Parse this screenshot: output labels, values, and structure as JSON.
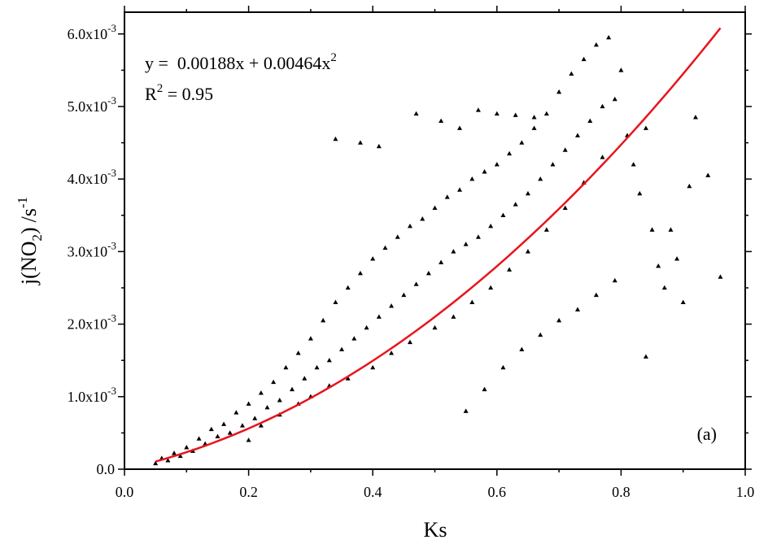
{
  "chart_data": {
    "type": "scatter",
    "title": "",
    "xlabel": "Ks",
    "ylabel_parts": {
      "main": "j(NO",
      "sub": "2",
      "after": ")",
      "unit": "/s",
      "sup": "-1"
    },
    "xlim": [
      0.0,
      1.0
    ],
    "ylim": [
      0.0,
      0.0063
    ],
    "x_ticks": [
      0.0,
      0.2,
      0.4,
      0.6,
      0.8,
      1.0
    ],
    "x_tick_labels": [
      "0.0",
      "0.2",
      "0.4",
      "0.6",
      "0.8",
      "1.0"
    ],
    "y_ticks": [
      0.0,
      0.001,
      0.002,
      0.003,
      0.004,
      0.005,
      0.006
    ],
    "y_tick_labels": [
      {
        "mant": "0.0",
        "exp": ""
      },
      {
        "mant": "1.0x10",
        "exp": "-3"
      },
      {
        "mant": "2.0x10",
        "exp": "-3"
      },
      {
        "mant": "3.0x10",
        "exp": "-3"
      },
      {
        "mant": "4.0x10",
        "exp": "-3"
      },
      {
        "mant": "5.0x10",
        "exp": "-3"
      },
      {
        "mant": "6.0x10",
        "exp": "-3"
      }
    ],
    "grid": false,
    "panel_label": "(a)",
    "equation": {
      "prefix": "y =  0.00188x + 0.00464x",
      "sup": "2"
    },
    "r2": {
      "r": "R",
      "sup": "2",
      "value": " = 0.95"
    },
    "fit": {
      "a": 0.00188,
      "b": 0.00464,
      "x_range": [
        0.05,
        0.96
      ],
      "color": "#e8141c"
    },
    "marker_color": "#000000",
    "series": [
      {
        "points": [
          [
            0.05,
            8e-05
          ],
          [
            0.06,
            0.00015
          ],
          [
            0.07,
            0.00012
          ],
          [
            0.08,
            0.00022
          ],
          [
            0.09,
            0.00018
          ],
          [
            0.1,
            0.0003
          ],
          [
            0.11,
            0.00025
          ],
          [
            0.12,
            0.00042
          ],
          [
            0.13,
            0.00035
          ],
          [
            0.14,
            0.00055
          ],
          [
            0.15,
            0.00045
          ],
          [
            0.16,
            0.00062
          ],
          [
            0.17,
            0.0005
          ],
          [
            0.18,
            0.00078
          ],
          [
            0.19,
            0.0006
          ],
          [
            0.2,
            0.0009
          ],
          [
            0.21,
            0.0007
          ],
          [
            0.22,
            0.00105
          ],
          [
            0.23,
            0.00085
          ],
          [
            0.24,
            0.0012
          ],
          [
            0.25,
            0.00095
          ],
          [
            0.26,
            0.0014
          ],
          [
            0.27,
            0.0011
          ],
          [
            0.28,
            0.0016
          ],
          [
            0.29,
            0.00125
          ],
          [
            0.3,
            0.0018
          ],
          [
            0.31,
            0.0014
          ],
          [
            0.32,
            0.00205
          ],
          [
            0.33,
            0.0015
          ],
          [
            0.34,
            0.0023
          ],
          [
            0.35,
            0.00165
          ],
          [
            0.36,
            0.0025
          ],
          [
            0.37,
            0.0018
          ],
          [
            0.38,
            0.0027
          ],
          [
            0.39,
            0.00195
          ],
          [
            0.4,
            0.0029
          ],
          [
            0.41,
            0.0021
          ],
          [
            0.42,
            0.00305
          ],
          [
            0.43,
            0.00225
          ],
          [
            0.44,
            0.0032
          ],
          [
            0.45,
            0.0024
          ],
          [
            0.46,
            0.00335
          ],
          [
            0.47,
            0.00255
          ],
          [
            0.48,
            0.00345
          ],
          [
            0.49,
            0.0027
          ],
          [
            0.5,
            0.0036
          ],
          [
            0.51,
            0.00285
          ],
          [
            0.52,
            0.00375
          ],
          [
            0.53,
            0.003
          ],
          [
            0.54,
            0.00385
          ],
          [
            0.55,
            0.0031
          ],
          [
            0.56,
            0.004
          ],
          [
            0.57,
            0.0032
          ],
          [
            0.58,
            0.0041
          ],
          [
            0.59,
            0.00335
          ],
          [
            0.6,
            0.0042
          ],
          [
            0.61,
            0.0035
          ],
          [
            0.62,
            0.00435
          ],
          [
            0.63,
            0.00365
          ],
          [
            0.64,
            0.0045
          ],
          [
            0.65,
            0.0038
          ],
          [
            0.66,
            0.0047
          ],
          [
            0.67,
            0.004
          ],
          [
            0.68,
            0.0049
          ],
          [
            0.69,
            0.0042
          ],
          [
            0.7,
            0.0052
          ],
          [
            0.71,
            0.0044
          ],
          [
            0.72,
            0.00545
          ],
          [
            0.73,
            0.0046
          ],
          [
            0.74,
            0.00565
          ],
          [
            0.75,
            0.0048
          ],
          [
            0.76,
            0.00585
          ],
          [
            0.77,
            0.005
          ],
          [
            0.78,
            0.00595
          ],
          [
            0.79,
            0.0051
          ],
          [
            0.8,
            0.0055
          ],
          [
            0.81,
            0.0046
          ],
          [
            0.82,
            0.0042
          ],
          [
            0.83,
            0.0038
          ],
          [
            0.84,
            0.0047
          ],
          [
            0.85,
            0.0033
          ],
          [
            0.86,
            0.0028
          ],
          [
            0.87,
            0.0025
          ],
          [
            0.88,
            0.0033
          ],
          [
            0.89,
            0.0029
          ],
          [
            0.9,
            0.0023
          ],
          [
            0.91,
            0.0039
          ],
          [
            0.92,
            0.00485
          ],
          [
            0.94,
            0.00405
          ],
          [
            0.96,
            0.00265
          ],
          [
            0.34,
            0.00455
          ],
          [
            0.38,
            0.0045
          ],
          [
            0.41,
            0.00445
          ],
          [
            0.47,
            0.0049
          ],
          [
            0.51,
            0.0048
          ],
          [
            0.54,
            0.0047
          ],
          [
            0.57,
            0.00495
          ],
          [
            0.6,
            0.0049
          ],
          [
            0.63,
            0.00488
          ],
          [
            0.66,
            0.00485
          ],
          [
            0.2,
            0.0004
          ],
          [
            0.22,
            0.0006
          ],
          [
            0.25,
            0.00075
          ],
          [
            0.28,
            0.0009
          ],
          [
            0.3,
            0.001
          ],
          [
            0.33,
            0.00115
          ],
          [
            0.36,
            0.00125
          ],
          [
            0.4,
            0.0014
          ],
          [
            0.43,
            0.0016
          ],
          [
            0.46,
            0.00175
          ],
          [
            0.5,
            0.00195
          ],
          [
            0.53,
            0.0021
          ],
          [
            0.56,
            0.0023
          ],
          [
            0.59,
            0.0025
          ],
          [
            0.62,
            0.00275
          ],
          [
            0.65,
            0.003
          ],
          [
            0.68,
            0.0033
          ],
          [
            0.71,
            0.0036
          ],
          [
            0.74,
            0.00395
          ],
          [
            0.77,
            0.0043
          ],
          [
            0.55,
            0.0008
          ],
          [
            0.58,
            0.0011
          ],
          [
            0.61,
            0.0014
          ],
          [
            0.64,
            0.00165
          ],
          [
            0.67,
            0.00185
          ],
          [
            0.7,
            0.00205
          ],
          [
            0.73,
            0.0022
          ],
          [
            0.76,
            0.0024
          ],
          [
            0.79,
            0.0026
          ],
          [
            0.84,
            0.00155
          ]
        ]
      }
    ]
  }
}
